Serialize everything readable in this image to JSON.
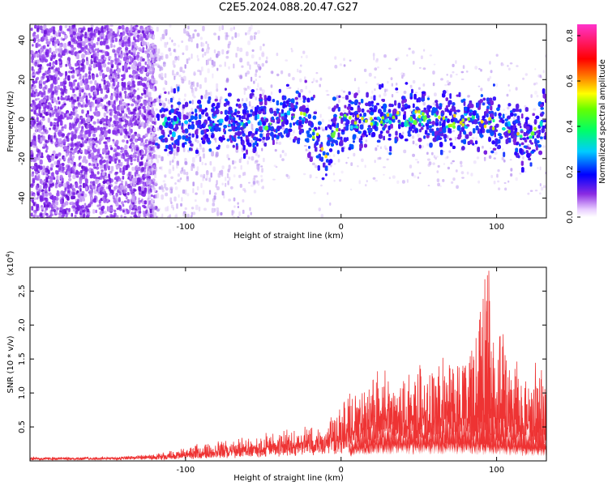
{
  "title": "C2E5.2024.088.20.47.G27",
  "chart_data": [
    {
      "type": "heatmap",
      "xlabel": "Height of straight line (km)",
      "ylabel": "Frequency (Hz)",
      "xlim": [
        -200,
        132
      ],
      "ylim": [
        -50,
        48
      ],
      "x_ticks": [
        -100,
        0,
        100
      ],
      "y_ticks": [
        -40,
        -20,
        0,
        20,
        40
      ],
      "colorbar": {
        "label": "Normalized spectral amplitude",
        "range": [
          0.0,
          0.85
        ],
        "ticks": [
          "0.0",
          "0.2",
          "0.4",
          "0.6",
          "0.8"
        ]
      },
      "description_points": {
        "noise_region_x": [
          -200,
          -120
        ],
        "ridge_center_hz": [
          [
            -118,
            -3
          ],
          [
            -100,
            -2
          ],
          [
            -80,
            -1
          ],
          [
            -60,
            -2
          ],
          [
            -40,
            2
          ],
          [
            -25,
            3
          ],
          [
            -15,
            -10
          ],
          [
            -10,
            -18
          ],
          [
            -5,
            -2
          ],
          [
            10,
            0
          ],
          [
            30,
            1
          ],
          [
            50,
            2
          ],
          [
            70,
            0
          ],
          [
            90,
            0
          ],
          [
            110,
            -3
          ],
          [
            120,
            -8
          ],
          [
            132,
            1
          ]
        ]
      }
    },
    {
      "type": "line",
      "xlabel": "Height of straight line (km)",
      "ylabel": "SNR (10 * v/v)",
      "y_multiplier": "(x10",
      "y_multiplier_exp": "4",
      "y_multiplier_close": ")",
      "xlim": [
        -200,
        132
      ],
      "ylim": [
        0,
        2.85
      ],
      "x_ticks": [
        -100,
        0,
        100
      ],
      "y_ticks": [
        0.5,
        1.0,
        1.5,
        2.0,
        2.5
      ],
      "y_tick_labels": [
        "0.5",
        "1.0",
        "1.5",
        "2.0",
        "2.5"
      ],
      "color": "#ee3333",
      "envelope": {
        "x": [
          -200,
          -150,
          -120,
          -100,
          -80,
          -60,
          -40,
          -20,
          -10,
          0,
          10,
          20,
          40,
          60,
          80,
          95,
          110,
          120,
          132
        ],
        "base": [
          0.04,
          0.04,
          0.05,
          0.08,
          0.12,
          0.15,
          0.2,
          0.25,
          0.28,
          0.3,
          0.45,
          0.55,
          0.6,
          0.6,
          0.6,
          0.55,
          0.5,
          0.45,
          0.4
        ],
        "peak": [
          0.05,
          0.06,
          0.1,
          0.2,
          0.3,
          0.35,
          0.45,
          0.5,
          0.55,
          0.9,
          1.1,
          1.3,
          1.4,
          1.6,
          1.7,
          2.8,
          1.6,
          1.5,
          1.4
        ]
      }
    }
  ]
}
